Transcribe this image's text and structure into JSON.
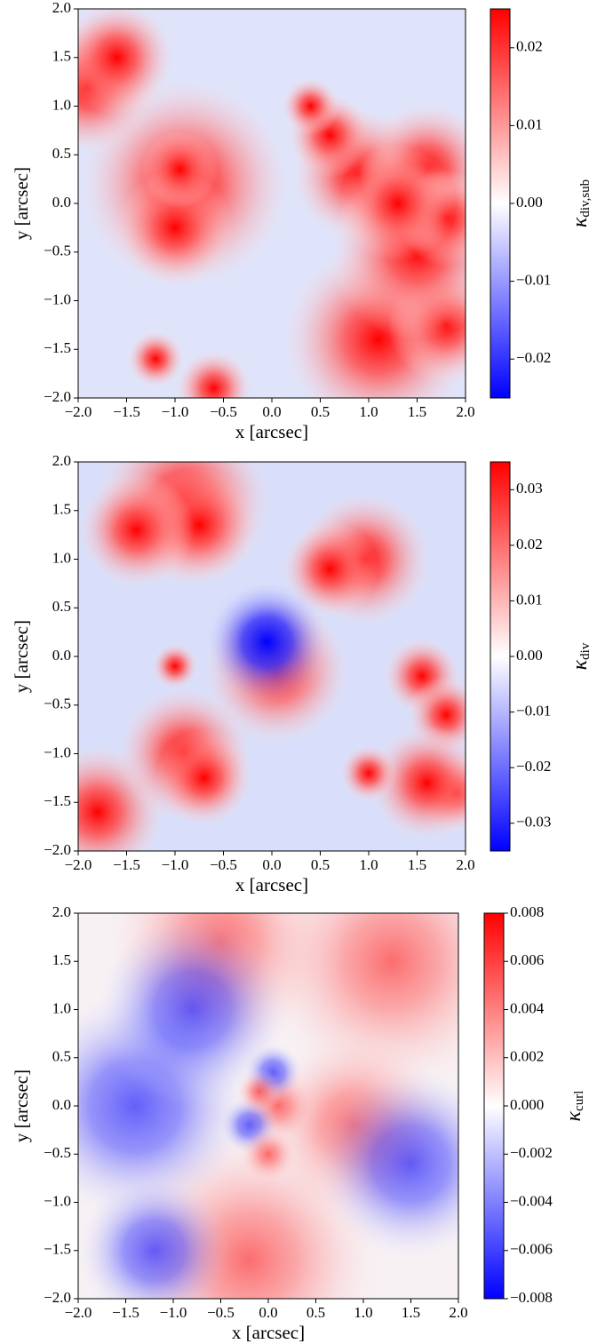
{
  "chart_data": [
    {
      "type": "heatmap",
      "colormap": "bwr",
      "xlabel": "x [arcsec]",
      "ylabel": "y [arcsec]",
      "colorbar_label": {
        "symbol": "κ",
        "subscript": "div,sub"
      },
      "xlim": [
        -2,
        2
      ],
      "ylim": [
        -2,
        2
      ],
      "clim": [
        -0.025,
        0.025
      ],
      "xticks": [
        {
          "value": -2,
          "label": "−2.0"
        },
        {
          "value": -1.5,
          "label": "−1.5"
        },
        {
          "value": -1,
          "label": "−1.0"
        },
        {
          "value": -0.5,
          "label": "−0.5"
        },
        {
          "value": 0,
          "label": "0.0"
        },
        {
          "value": 0.5,
          "label": "0.5"
        },
        {
          "value": 1,
          "label": "1.0"
        },
        {
          "value": 1.5,
          "label": "1.5"
        },
        {
          "value": 2,
          "label": "2.0"
        }
      ],
      "yticks": [
        {
          "value": -2,
          "label": "−2.0"
        },
        {
          "value": -1.5,
          "label": "−1.5"
        },
        {
          "value": -1,
          "label": "−1.0"
        },
        {
          "value": -0.5,
          "label": "−0.5"
        },
        {
          "value": 0,
          "label": "0.0"
        },
        {
          "value": 0.5,
          "label": "0.5"
        },
        {
          "value": 1,
          "label": "1.0"
        },
        {
          "value": 1.5,
          "label": "1.5"
        },
        {
          "value": 2,
          "label": "2.0"
        }
      ],
      "cticks": [
        {
          "value": -0.02,
          "label": "−0.02"
        },
        {
          "value": -0.01,
          "label": "−0.01"
        },
        {
          "value": 0,
          "label": "0.00"
        },
        0.01,
        0.02
      ]
    },
    {
      "type": "heatmap",
      "colormap": "bwr",
      "xlabel": "x [arcsec]",
      "ylabel": "y [arcsec]",
      "colorbar_label": {
        "symbol": "κ",
        "subscript": "div"
      },
      "xlim": [
        -2,
        2
      ],
      "ylim": [
        -2,
        2
      ],
      "clim": [
        -0.035,
        0.035
      ],
      "xticks": [
        {
          "value": -2,
          "label": "−2.0"
        },
        {
          "value": -1.5,
          "label": "−1.5"
        },
        {
          "value": -1,
          "label": "−1.0"
        },
        {
          "value": -0.5,
          "label": "−0.5"
        },
        {
          "value": 0,
          "label": "0.0"
        },
        {
          "value": 0.5,
          "label": "0.5"
        },
        {
          "value": 1,
          "label": "1.0"
        },
        {
          "value": 1.5,
          "label": "1.5"
        },
        {
          "value": 2,
          "label": "2.0"
        }
      ],
      "yticks": [
        {
          "value": -2,
          "label": "−2.0"
        },
        {
          "value": -1.5,
          "label": "−1.5"
        },
        {
          "value": -1,
          "label": "−1.0"
        },
        {
          "value": -0.5,
          "label": "−0.5"
        },
        {
          "value": 0,
          "label": "0.0"
        },
        {
          "value": 0.5,
          "label": "0.5"
        },
        {
          "value": 1,
          "label": "1.0"
        },
        {
          "value": 1.5,
          "label": "1.5"
        },
        {
          "value": 2,
          "label": "2.0"
        }
      ],
      "cticks": [
        {
          "value": -0.03,
          "label": "−0.03"
        },
        {
          "value": -0.02,
          "label": "−0.02"
        },
        {
          "value": -0.01,
          "label": "−0.01"
        },
        {
          "value": 0,
          "label": "0.00"
        },
        0.01,
        0.02,
        0.03
      ]
    },
    {
      "type": "heatmap",
      "colormap": "bwr",
      "xlabel": "x [arcsec]",
      "ylabel": "y [arcsec]",
      "colorbar_label": {
        "symbol": "κ",
        "subscript": "curl"
      },
      "xlim": [
        -2,
        2
      ],
      "ylim": [
        -2,
        2
      ],
      "clim": [
        -0.008,
        0.008
      ],
      "xticks": [
        {
          "value": -2,
          "label": "−2.0"
        },
        {
          "value": -1.5,
          "label": "−1.5"
        },
        {
          "value": -1,
          "label": "−1.0"
        },
        {
          "value": -0.5,
          "label": "−0.5"
        },
        {
          "value": 0,
          "label": "0.0"
        },
        {
          "value": 0.5,
          "label": "0.5"
        },
        {
          "value": 1,
          "label": "1.0"
        },
        {
          "value": 1.5,
          "label": "1.5"
        },
        {
          "value": 2,
          "label": "2.0"
        }
      ],
      "yticks": [
        {
          "value": -2,
          "label": "−2.0"
        },
        {
          "value": -1.5,
          "label": "−1.5"
        },
        {
          "value": -1,
          "label": "−1.0"
        },
        {
          "value": -0.5,
          "label": "−0.5"
        },
        {
          "value": 0,
          "label": "0.0"
        },
        {
          "value": 0.5,
          "label": "0.5"
        },
        {
          "value": 1,
          "label": "1.0"
        },
        {
          "value": 1.5,
          "label": "1.5"
        },
        {
          "value": 2,
          "label": "2.0"
        }
      ],
      "cticks": [
        {
          "value": -0.008,
          "label": "−0.008"
        },
        {
          "value": -0.006,
          "label": "−0.006"
        },
        {
          "value": -0.004,
          "label": "−0.004"
        },
        {
          "value": -0.002,
          "label": "−0.002"
        },
        {
          "value": 0,
          "label": "0.000"
        },
        0.002,
        0.004,
        0.006,
        0.008
      ]
    }
  ]
}
